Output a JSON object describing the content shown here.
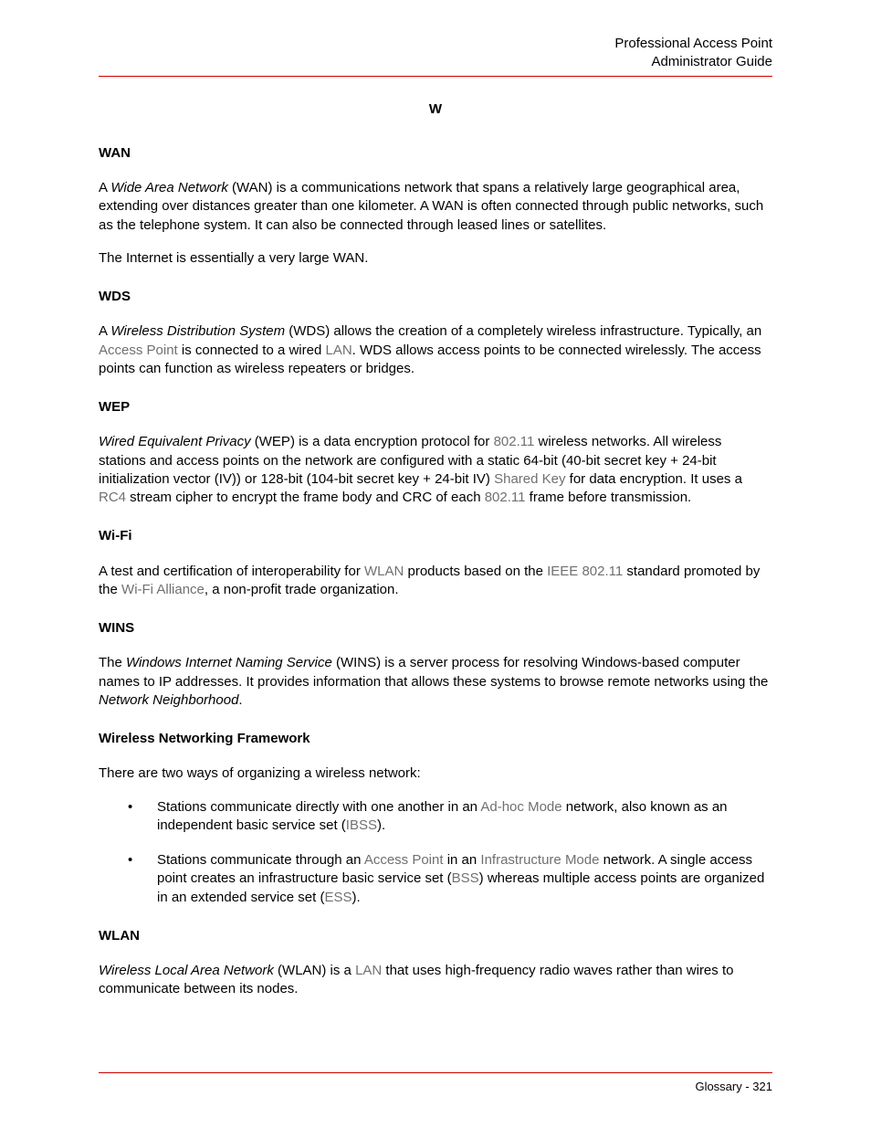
{
  "colors": {
    "text": "#000000",
    "link": "#707070",
    "rule": "#cc0000",
    "background": "#ffffff"
  },
  "typography": {
    "body_family": "Arial, Helvetica, sans-serif",
    "heading_family": "Verdana, Geneva, sans-serif",
    "body_size_pt": 11,
    "heading_size_pt": 11
  },
  "header": {
    "line1": "Professional Access Point",
    "line2": "Administrator Guide"
  },
  "section_letter": "W",
  "entries": {
    "wan": {
      "heading": "WAN",
      "p1_a": "A ",
      "p1_em": "Wide Area Network",
      "p1_b": " (WAN) is a communications network that spans a relatively large geographical area, extending over distances greater than one kilometer. A WAN is often connected through public networks, such as the telephone system. It can also be connected through leased lines or satellites.",
      "p2": "The Internet is essentially a very large WAN."
    },
    "wds": {
      "heading": "WDS",
      "p1_a": "A ",
      "p1_em": "Wireless Distribution System",
      "p1_b": " (WDS) allows the creation of a completely wireless infrastructure. Typically, an ",
      "p1_link1": "Access Point",
      "p1_c": " is connected to a wired ",
      "p1_link2": "LAN",
      "p1_d": ". WDS allows access points to be connected wirelessly. The access points can function as wireless repeaters or bridges."
    },
    "wep": {
      "heading": "WEP",
      "p1_em": "Wired Equivalent Privacy",
      "p1_a": " (WEP) is a data encryption protocol for ",
      "p1_link1": "802.11",
      "p1_b": " wireless networks. All wireless stations and access points on the network are configured with a static 64-bit (40-bit secret key + 24-bit initialization vector (IV)) or 128-bit (104-bit secret key + 24-bit IV) ",
      "p1_link2": "Shared Key",
      "p1_c": " for data encryption. It uses a ",
      "p1_link3": "RC4",
      "p1_d": " stream cipher to encrypt the frame body and CRC of each ",
      "p1_link4": "802.11",
      "p1_e": " frame before transmission."
    },
    "wifi": {
      "heading": "Wi-Fi",
      "p1_a": "A test and certification of interoperability for ",
      "p1_link1": "WLAN",
      "p1_b": " products based on the ",
      "p1_link2": "IEEE",
      "p1_sp": " ",
      "p1_link3": "802.11",
      "p1_c": " standard promoted by the ",
      "p1_link4": "Wi-Fi Alliance",
      "p1_d": ", a non-profit trade organization."
    },
    "wins": {
      "heading": "WINS",
      "p1_a": "The ",
      "p1_em1": "Windows Internet Naming Service",
      "p1_b": " (WINS) is a server process for resolving Windows-based computer names to IP addresses. It provides information that allows these systems to browse remote networks using the ",
      "p1_em2": "Network Neighborhood",
      "p1_c": "."
    },
    "wnf": {
      "heading": "Wireless Networking Framework",
      "p1": "There are two ways of organizing a wireless network:",
      "b1_a": "Stations communicate directly with one another in an ",
      "b1_link1": "Ad-hoc Mode",
      "b1_b": " network, also known as an independent basic service set (",
      "b1_link2": "IBSS",
      "b1_c": ").",
      "b2_a": "Stations communicate through an ",
      "b2_link1": "Access Point",
      "b2_b": " in an ",
      "b2_link2": "Infrastructure Mode",
      "b2_c": " network. A single access point creates an infrastructure basic service set (",
      "b2_link3": "BSS",
      "b2_d": ") whereas multiple access points are organized in an extended service set (",
      "b2_link4": "ESS",
      "b2_e": ")."
    },
    "wlan": {
      "heading": "WLAN",
      "p1_em": "Wireless Local Area Network",
      "p1_a": " (WLAN) is a ",
      "p1_link1": "LAN",
      "p1_b": " that uses high-frequency radio waves rather than wires to communicate between its nodes."
    }
  },
  "footer": {
    "label": "Glossary - 321"
  }
}
